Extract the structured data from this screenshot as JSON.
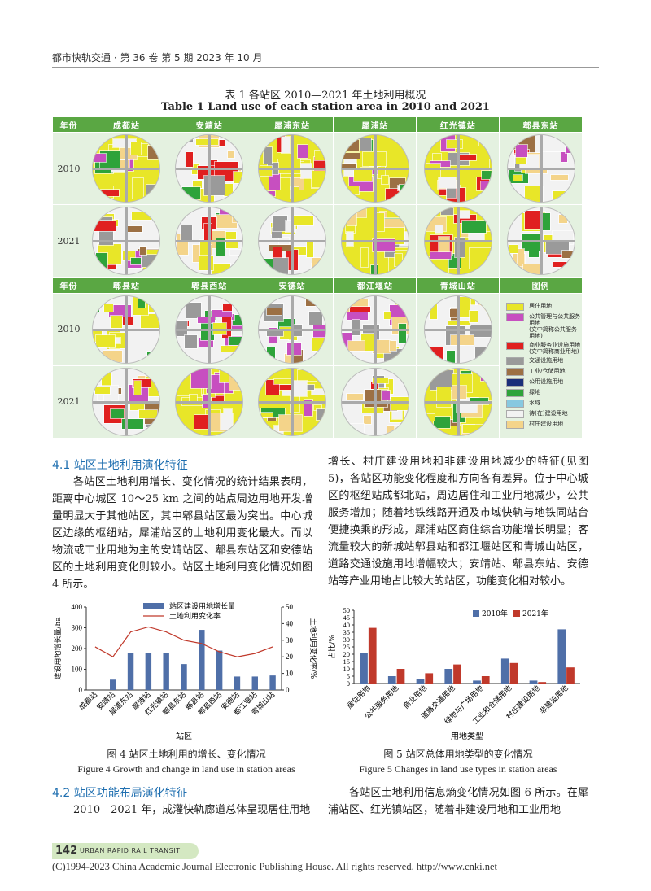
{
  "header": {
    "journal": "都市快轨交通 · 第 36 卷  第 5 期  2023 年 10 月"
  },
  "table1": {
    "title_cn": "表 1    各站区 2010—2021 年土地利用概况",
    "title_en": "Table 1    Land use of each station area in 2010 and 2021",
    "row_label_header": "年份",
    "years": [
      "2010",
      "2021"
    ],
    "stations_top": [
      "成都站",
      "安靖站",
      "犀浦东站",
      "犀浦站",
      "红光镇站",
      "郫县东站"
    ],
    "stations_bottom": [
      "郫县站",
      "郫县西站",
      "安德站",
      "都江堰站",
      "青城山站"
    ],
    "legend_header": "图例",
    "legend": [
      {
        "label": "居住用地",
        "color": "#e8e628"
      },
      {
        "label": "公共管理与公共服务用地\n(文中简称公共服务用地)",
        "color": "#c74fc0"
      },
      {
        "label": "商业服务业设施用地\n(文中简称商业用地)",
        "color": "#e02020"
      },
      {
        "label": "交通设施用地",
        "color": "#9a9a9a"
      },
      {
        "label": "工业/仓储用地",
        "color": "#9c7044"
      },
      {
        "label": "公用设施用地",
        "color": "#1b2f7a"
      },
      {
        "label": "绿地",
        "color": "#2ea33a"
      },
      {
        "label": "水域",
        "color": "#87c8e0"
      },
      {
        "label": "待(在)建设用地",
        "color": "#f2f2f2"
      },
      {
        "label": "村庄建设用地",
        "color": "#f4d48a"
      }
    ]
  },
  "section41": {
    "heading": "4.1    站区土地利用演化特征",
    "para_left": "各站区土地利用增长、变化情况的统计结果表明，距离中心城区 10～25 km 之间的站点周边用地开发增量明显大于其他站区，其中郫县站区最为突出。中心城区边缘的枢纽站，犀浦站区的土地利用变化最大。而以物流或工业用地为主的安靖站区、郫县东站区和安德站区的土地利用变化则较小。站区土地利用变化情况如图 4 所示。",
    "para_right": "增长、村庄建设用地和非建设用地减少的特征(见图 5)，各站区功能变化程度和方向各有差异。位于中心城区的枢纽站成都北站，周边居住和工业用地减少，公共服务增加；随着地铁线路开通及市域快轨与地铁同站台便捷换乘的形成，犀浦站区商住综合功能增长明显；客流量较大的新城站郫县站和都江堰站区和青城山站区，道路交通设施用地增幅较大；安靖站、郫县东站、安德站等产业用地占比较大的站区，功能变化相对较小。"
  },
  "chart_data": [
    {
      "type": "bar",
      "categories": [
        "成都站",
        "安靖站",
        "犀浦东站",
        "犀浦站",
        "红光镇站",
        "郫县东站",
        "郫县站",
        "郫县西站",
        "安德站",
        "都江堰站",
        "青城山站"
      ],
      "series": [
        {
          "name": "站区建设用地增长量",
          "type": "bar",
          "axis": "left",
          "values": [
            0,
            50,
            180,
            180,
            180,
            125,
            290,
            190,
            65,
            65,
            70
          ]
        },
        {
          "name": "土地利用变化率",
          "type": "line",
          "axis": "right",
          "values": [
            26,
            20,
            35,
            38,
            35,
            30,
            28,
            23,
            20,
            22,
            26
          ]
        }
      ],
      "xlabel": "站区",
      "ylabel": "建设用地增长量/ha",
      "y2label": "土地利用变化率/%",
      "ylim": [
        0,
        400
      ],
      "y2lim": [
        0,
        50
      ],
      "yticks": [
        0,
        100,
        200,
        300,
        400
      ],
      "y2ticks": [
        0,
        10,
        20,
        30,
        40,
        50
      ],
      "colors": {
        "bar": "#4f6fa8",
        "line": "#c0392b"
      },
      "legend": "top"
    },
    {
      "type": "bar",
      "categories": [
        "居住用地",
        "公共服务用地",
        "商业用地",
        "道路交通用地",
        "绿地与广场用地",
        "工业和仓储用地",
        "村庄建设用地",
        "非建设用地"
      ],
      "series": [
        {
          "name": "2010年",
          "values": [
            21,
            5,
            3,
            10,
            2,
            17,
            2,
            37
          ]
        },
        {
          "name": "2021年",
          "values": [
            38,
            10,
            7,
            13,
            5,
            14,
            1,
            11
          ]
        }
      ],
      "xlabel": "用地类型",
      "ylabel": "占比/%",
      "ylim": [
        0,
        50
      ],
      "yticks": [
        0,
        5,
        10,
        15,
        20,
        25,
        30,
        35,
        40,
        45,
        50
      ],
      "colors": {
        "2010年": "#4f6fa8",
        "2021年": "#c0392b"
      },
      "legend": "top"
    }
  ],
  "fig4": {
    "caption_cn": "图 4    站区土地利用的增长、变化情况",
    "caption_en": "Figure 4    Growth and change in land use in station areas"
  },
  "fig5": {
    "caption_cn": "图 5    站区总体用地类型的变化情况",
    "caption_en": "Figure 5    Changes in land use types in station areas"
  },
  "section42": {
    "heading": "4.2    站区功能布局演化特征",
    "para_left": "2010—2021 年，成灌快轨廊道总体呈现居住用地",
    "para_right": "各站区土地利用信息熵变化情况如图 6 所示。在犀浦站区、红光镇站区，随着非建设用地和工业用地"
  },
  "footer": {
    "page": "142",
    "journal_en": "URBAN RAPID RAIL TRANSIT",
    "copyright": "(C)1994-2023 China Academic Journal Electronic Publishing House. All rights reserved.    http://www.cnki.net"
  }
}
